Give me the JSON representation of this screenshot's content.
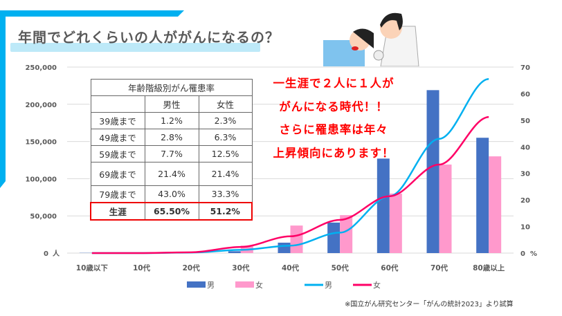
{
  "title": "年間でどれくらいの人ががんになるの？",
  "message": [
    "一生涯で２人に１人が",
    "がんになる時代！！",
    "さらに罹患率は年々",
    "上昇傾向にあります！"
  ],
  "table": {
    "title": "年齢階級別がん罹患率",
    "headers": [
      "",
      "男性",
      "女性"
    ],
    "rows": [
      [
        "39歳まで",
        "1.2%",
        "2.3%"
      ],
      [
        "49歳まで",
        "2.8%",
        "6.3%"
      ],
      [
        "59歳まで",
        "7.7%",
        "12.5%"
      ],
      [
        "69歳まで",
        "21.4%",
        "21.4%"
      ],
      [
        "79歳まで",
        "43.0%",
        "33.3%"
      ],
      [
        "生涯",
        "65.50%",
        "51.2%"
      ]
    ]
  },
  "footnote": "※国立がん研究センター「がんの統計2023」より試算",
  "chart_data": {
    "type": "bar",
    "categories": [
      "10歳以下",
      "10代",
      "20代",
      "30代",
      "40代",
      "50代",
      "60代",
      "70代",
      "80歳以上"
    ],
    "left_axis": {
      "ylim": [
        0,
        250000
      ],
      "ticks": [
        "0",
        "50,000",
        "100,000",
        "150,000",
        "200,000",
        "250,000"
      ],
      "unit": "人"
    },
    "right_axis": {
      "ylim": [
        0,
        70
      ],
      "ticks": [
        "0",
        "10",
        "20",
        "30",
        "40",
        "50",
        "60",
        "70"
      ],
      "unit": "%"
    },
    "series": [
      {
        "name": "男",
        "kind": "bar",
        "axis": "left",
        "color": "#4472c4",
        "values": [
          300,
          300,
          1000,
          2500,
          14000,
          41000,
          127000,
          219000,
          155000
        ]
      },
      {
        "name": "女",
        "kind": "bar",
        "axis": "left",
        "color": "#ff99cc",
        "values": [
          300,
          300,
          1500,
          10000,
          37000,
          51000,
          80000,
          119000,
          130000
        ]
      },
      {
        "name": "男",
        "kind": "line",
        "axis": "right",
        "color": "#00b0f0",
        "values": [
          0,
          0,
          0.2,
          1.2,
          2.8,
          7.7,
          21.4,
          43.0,
          65.5
        ]
      },
      {
        "name": "女",
        "kind": "line",
        "axis": "right",
        "color": "#ff0066",
        "values": [
          0,
          0,
          0.3,
          2.3,
          6.3,
          12.5,
          21.4,
          33.3,
          51.2
        ]
      }
    ],
    "legend": "bottom",
    "grid": true
  }
}
